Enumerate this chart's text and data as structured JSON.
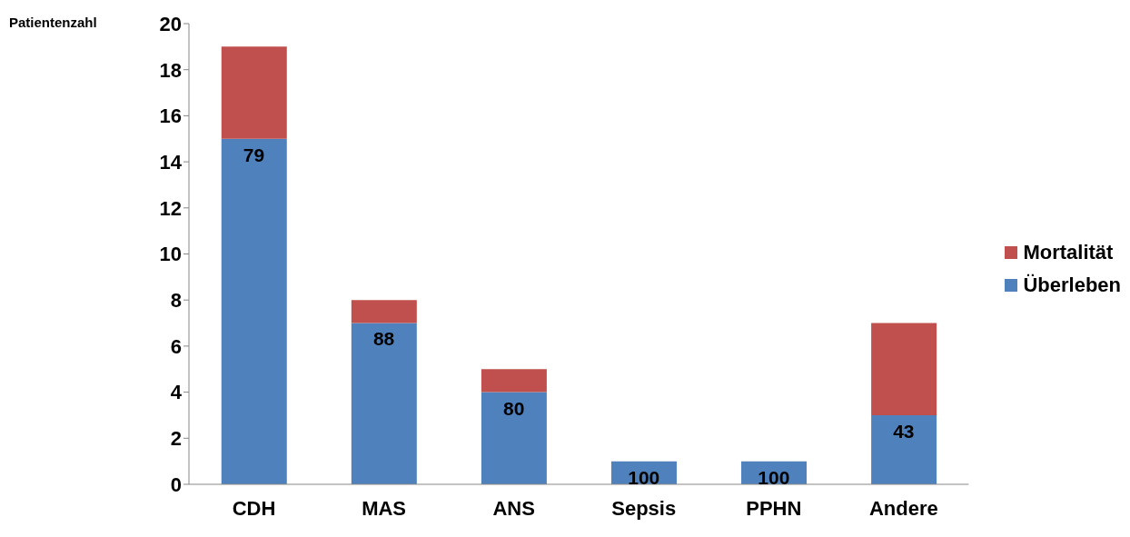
{
  "chart_data": {
    "type": "bar",
    "ylabel": "Patientenzahl",
    "categories": [
      "CDH",
      "MAS",
      "ANS",
      "Sepsis",
      "PPHN",
      "Andere"
    ],
    "stacked": true,
    "series": [
      {
        "name": "Überleben",
        "color": "#4f81bd",
        "values": [
          15,
          7,
          4,
          1,
          1,
          3
        ]
      },
      {
        "name": "Mortalität",
        "color": "#c0504d",
        "values": [
          4,
          1,
          1,
          0,
          0,
          4
        ]
      }
    ],
    "annotations": [
      {
        "text": "79",
        "x": "CDH",
        "y": 15
      },
      {
        "text": "88",
        "x": "MAS",
        "y": 7
      },
      {
        "text": "80",
        "x": "ANS",
        "y": 4
      },
      {
        "text": "100",
        "x": "Sepsis",
        "y": 1
      },
      {
        "text": "100",
        "x": "PPHN",
        "y": 1
      },
      {
        "text": "43",
        "x": "Andere",
        "y": 3
      }
    ],
    "ylim": [
      0,
      20
    ],
    "yticks": [
      0,
      2,
      4,
      6,
      8,
      10,
      12,
      14,
      16,
      18,
      20
    ],
    "grid": false,
    "legend": "right"
  }
}
